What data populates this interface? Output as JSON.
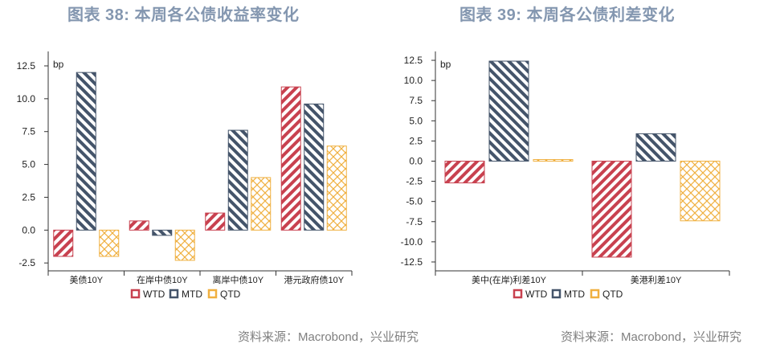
{
  "charts_meta": {
    "left_title": "图表 38: 本周各公债收益率变化",
    "right_title": "图表 39: 本周各公债利差变化",
    "source": "资料来源：Macrobond，兴业研究"
  },
  "colors": {
    "WTD": "#c8414f",
    "MTD": "#44546a",
    "QTD": "#f0b040"
  },
  "chart_data": [
    {
      "type": "bar",
      "title": "图表 38: 本周各公债收益率变化",
      "unit_label": "bp",
      "categories": [
        "美债10Y",
        "在岸中债10Y",
        "离岸中债10Y",
        "港元政府债10Y"
      ],
      "series": [
        {
          "name": "WTD",
          "values": [
            -2.0,
            0.7,
            1.3,
            10.9
          ]
        },
        {
          "name": "MTD",
          "values": [
            12.0,
            -0.4,
            7.6,
            9.6
          ]
        },
        {
          "name": "QTD",
          "values": [
            -2.0,
            -2.3,
            4.0,
            6.4
          ]
        }
      ],
      "ylim": [
        -3.1,
        13.6
      ],
      "yticks": [
        "-2.5",
        "0.0",
        "2.5",
        "5.0",
        "7.5",
        "10.0",
        "12.5"
      ],
      "legend_position": "bottom"
    },
    {
      "type": "bar",
      "title": "图表 39: 本周各公债利差变化",
      "unit_label": "bp",
      "categories": [
        "美中(在岸)利差10Y",
        "美港利差10Y"
      ],
      "series": [
        {
          "name": "WTD",
          "values": [
            -2.7,
            -11.9
          ]
        },
        {
          "name": "MTD",
          "values": [
            12.4,
            3.4
          ]
        },
        {
          "name": "QTD",
          "values": [
            0.2,
            -7.4
          ]
        }
      ],
      "ylim": [
        -13.6,
        13.6
      ],
      "yticks": [
        "-12.5",
        "-10.0",
        "-7.5",
        "-5.0",
        "-2.5",
        "0.0",
        "2.5",
        "5.0",
        "7.5",
        "10.0",
        "12.5"
      ],
      "legend_position": "bottom"
    }
  ]
}
